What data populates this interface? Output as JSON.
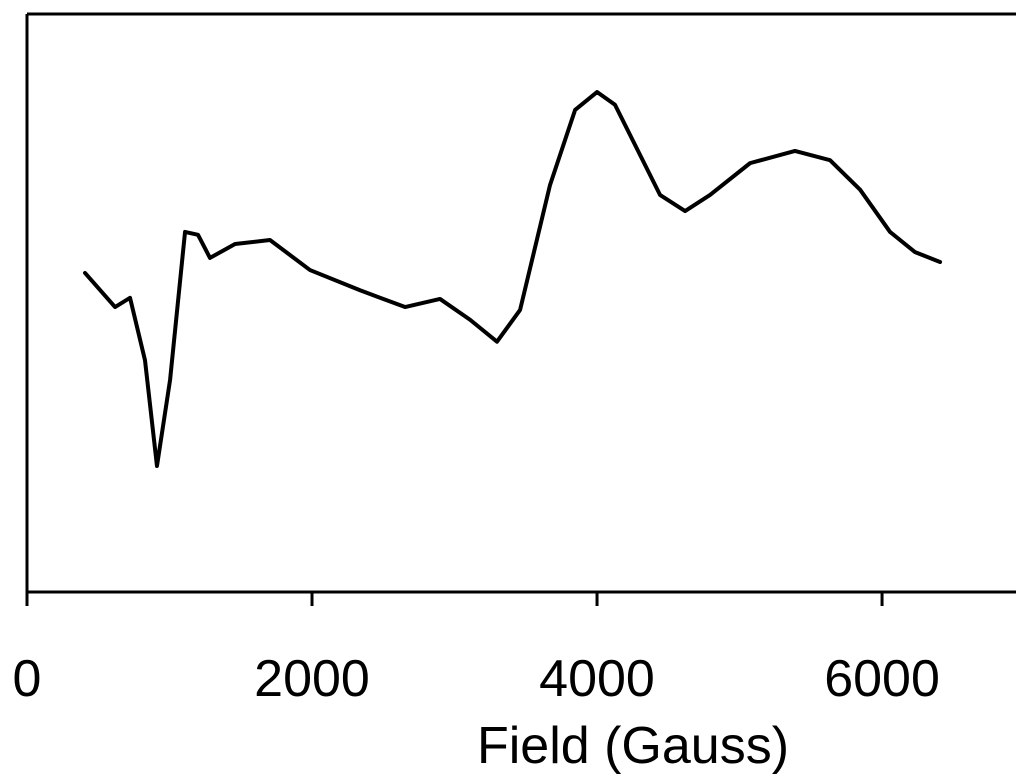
{
  "chart_data": {
    "type": "line",
    "x_label": "Field (Gauss)",
    "x": [
      407,
      618,
      723,
      828,
      912,
      1004,
      1109,
      1200,
      1284,
      1460,
      1705,
      1986,
      2337,
      2653,
      2898,
      3109,
      3298,
      3460,
      3670,
      3846,
      4000,
      4126,
      4442,
      4618,
      4793,
      5074,
      5389,
      5635,
      5846,
      6056,
      6232,
      6407
    ],
    "series": [
      {
        "color": "#000000",
        "values": [
          55.2,
          49.3,
          50.9,
          40.1,
          21.8,
          36.7,
          62.3,
          61.8,
          57.8,
          60.2,
          60.9,
          55.7,
          52.2,
          49.3,
          50.7,
          47.1,
          43.3,
          48.8,
          70.4,
          83.4,
          86.5,
          84.3,
          68.7,
          65.9,
          68.7,
          74.2,
          76.3,
          74.7,
          69.6,
          62.3,
          58.8,
          57.1
        ]
      }
    ],
    "xlim": [
      0,
      6940
    ],
    "xticks": [
      0,
      2000,
      4000,
      6000
    ],
    "ylim": [
      0,
      100
    ]
  }
}
